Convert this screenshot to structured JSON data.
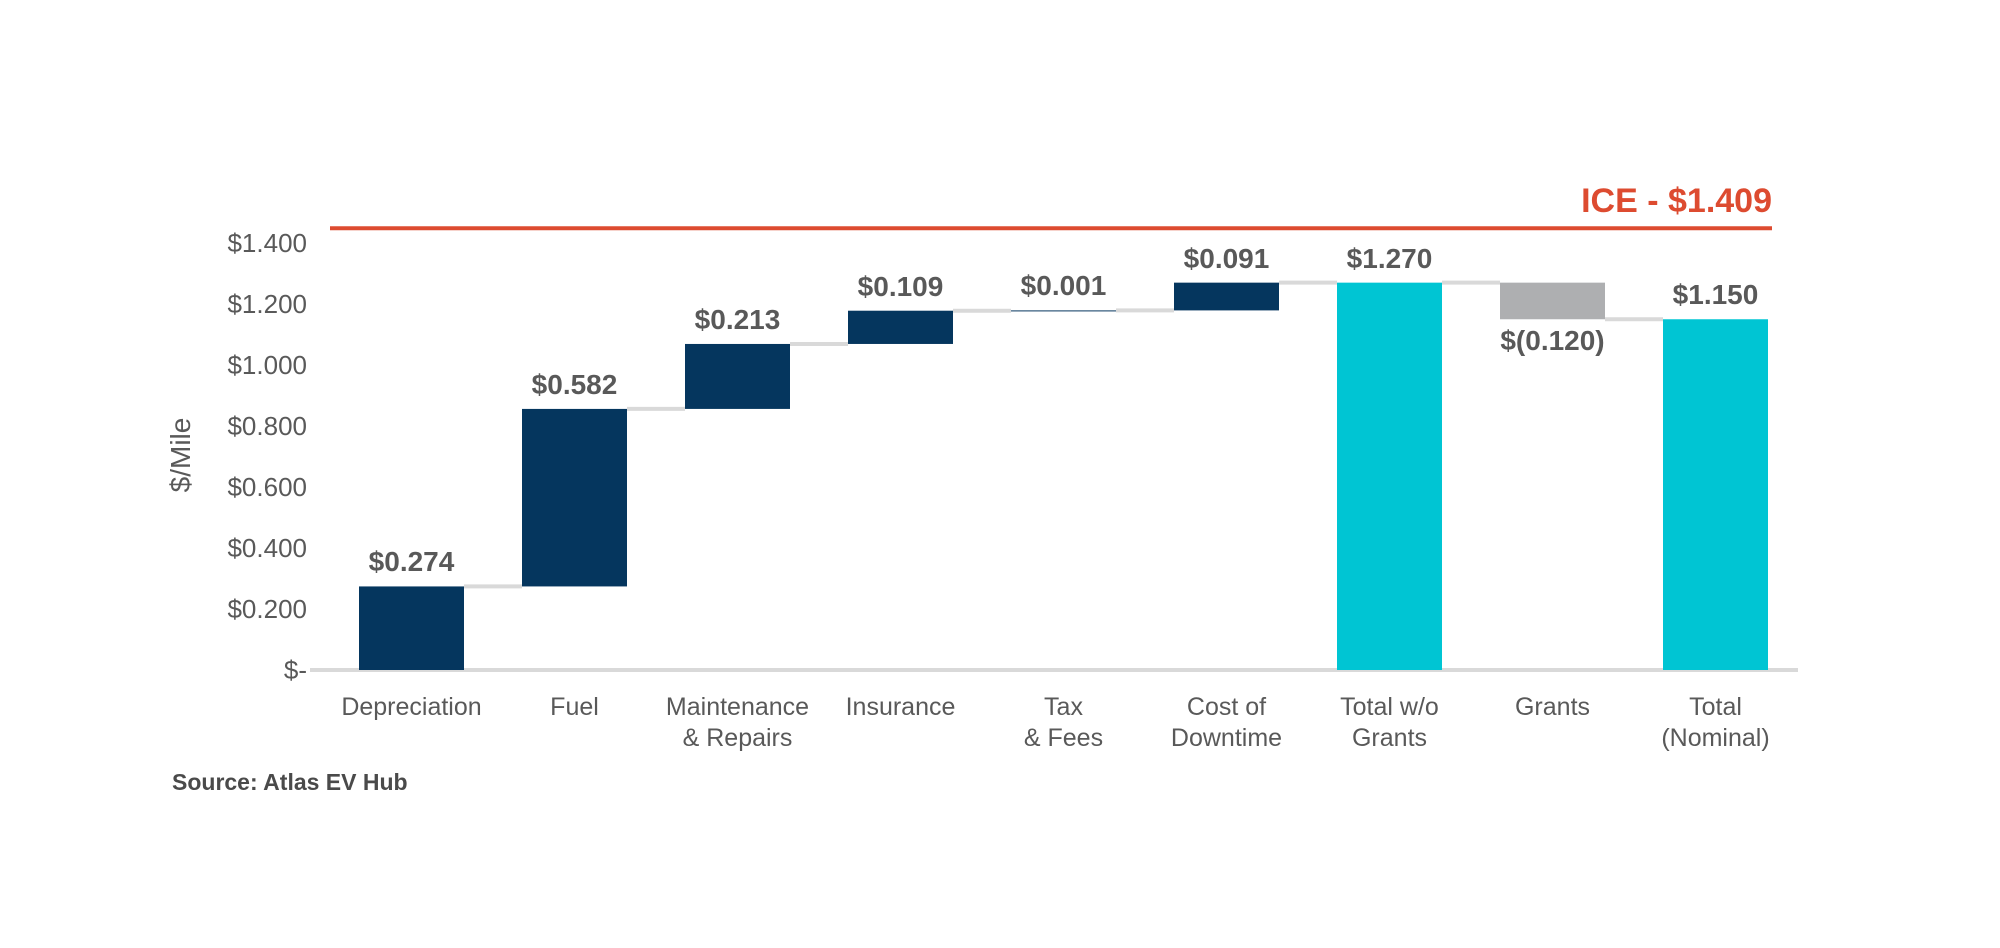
{
  "chart_data": {
    "type": "bar",
    "subtype": "waterfall",
    "title": "",
    "ylabel": "$/Mile",
    "xlabel": "",
    "source_note": "Source: Atlas EV Hub",
    "ylim": [
      0,
      1.4
    ],
    "grid": false,
    "legend": false,
    "reference_line": {
      "label": "ICE - $1.409",
      "value": 1.409
    },
    "y_ticks": [
      {
        "label": "$-",
        "value": 0
      },
      {
        "label": "$0.200",
        "value": 0.2
      },
      {
        "label": "$0.400",
        "value": 0.4
      },
      {
        "label": "$0.600",
        "value": 0.6
      },
      {
        "label": "$0.800",
        "value": 0.8
      },
      {
        "label": "$1.000",
        "value": 1.0
      },
      {
        "label": "$1.200",
        "value": 1.2
      },
      {
        "label": "$1.400",
        "value": 1.4
      }
    ],
    "bars": [
      {
        "category": "Depreciation",
        "category_lines": [
          "Depreciation"
        ],
        "value": 0.274,
        "value_label": "$0.274",
        "kind": "step"
      },
      {
        "category": "Fuel",
        "category_lines": [
          "Fuel"
        ],
        "value": 0.582,
        "value_label": "$0.582",
        "kind": "step"
      },
      {
        "category": "Maintenance & Repairs",
        "category_lines": [
          "Maintenance",
          "& Repairs"
        ],
        "value": 0.213,
        "value_label": "$0.213",
        "kind": "step"
      },
      {
        "category": "Insurance",
        "category_lines": [
          "Insurance"
        ],
        "value": 0.109,
        "value_label": "$0.109",
        "kind": "step"
      },
      {
        "category": "Tax & Fees",
        "category_lines": [
          "Tax",
          "& Fees"
        ],
        "value": 0.001,
        "value_label": "$0.001",
        "kind": "step"
      },
      {
        "category": "Cost of Downtime",
        "category_lines": [
          "Cost of",
          "Downtime"
        ],
        "value": 0.091,
        "value_label": "$0.091",
        "kind": "step"
      },
      {
        "category": "Total w/o Grants",
        "category_lines": [
          "Total w/o",
          "Grants"
        ],
        "value": 1.27,
        "value_label": "$1.270",
        "kind": "total"
      },
      {
        "category": "Grants",
        "category_lines": [
          "Grants"
        ],
        "value": -0.12,
        "value_label": "$(0.120)",
        "kind": "negative-step"
      },
      {
        "category": "Total (Nominal)",
        "category_lines": [
          "Total",
          "(Nominal)"
        ],
        "value": 1.15,
        "value_label": "$1.150",
        "kind": "total"
      }
    ],
    "colors": {
      "step": "#05365E",
      "total": "#00C5D3",
      "negative_step": "#AEAFB1",
      "reference": "#DD4B30",
      "connector": "#D9D9D9",
      "axis": "#D9D9D9",
      "text": "#595959",
      "source_text": "#4A4A4A"
    }
  }
}
